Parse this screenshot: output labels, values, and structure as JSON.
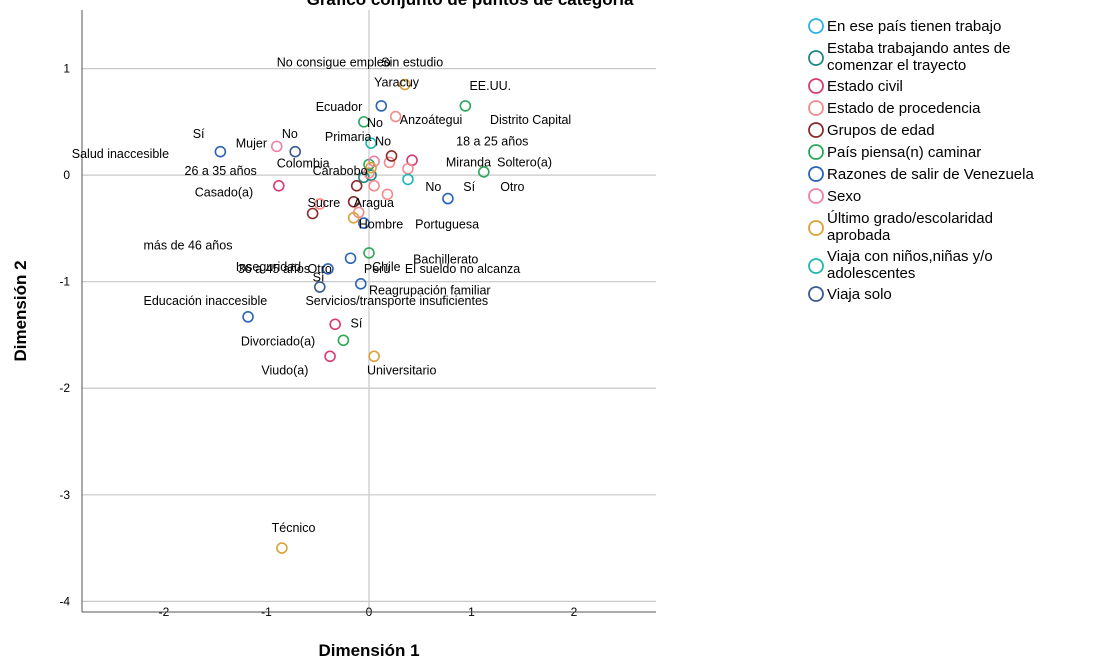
{
  "chart_data": {
    "type": "scatter",
    "title": "Gráfico conjunto de puntos de categoría",
    "xlabel": "Dimensión 1",
    "ylabel": "Dimensión 2",
    "xlim": [
      -2.8,
      2.8
    ],
    "ylim": [
      -4.1,
      1.55
    ],
    "xticks": [
      "-2",
      "-1",
      "0",
      "1",
      "2"
    ],
    "xtick_values": [
      -2,
      -1,
      0,
      1,
      2
    ],
    "yticks": [
      "1",
      "0",
      "-1",
      "-2",
      "-3",
      "-4"
    ],
    "ytick_values": [
      1,
      0,
      -1,
      -2,
      -3,
      -4
    ],
    "grid": "horizontal",
    "legend_position": "right",
    "series": [
      {
        "name": "En ese país tienen trabajo",
        "color": "#2cb3e6",
        "points": []
      },
      {
        "name": "Estaba trabajando antes de comenzar el trayecto",
        "color": "#1e8a7f",
        "points": [
          {
            "x": -0.05,
            "y": -0.02,
            "label": ""
          },
          {
            "x": 0.02,
            "y": 0.0,
            "label": ""
          }
        ]
      },
      {
        "name": "Estado civil",
        "color": "#d83c76",
        "points": [
          {
            "x": -0.88,
            "y": -0.1,
            "label": "Casado(a)"
          },
          {
            "x": 0.42,
            "y": 0.14,
            "label": "Soltero(a)"
          },
          {
            "x": -0.38,
            "y": -1.7,
            "label": "Viudo(a)"
          },
          {
            "x": -0.33,
            "y": -1.4,
            "label": "Divorciado(a)"
          }
        ]
      },
      {
        "name": "Estado de procedencia",
        "color": "#f28c8c",
        "points": [
          {
            "x": 0.26,
            "y": 0.55,
            "label": "Anzoátegui"
          },
          {
            "x": 0.38,
            "y": 0.06,
            "label": "Distrito Capital"
          },
          {
            "x": 0.18,
            "y": -0.18,
            "label": "Miranda"
          },
          {
            "x": -0.48,
            "y": -0.27,
            "label": "Carabobo"
          },
          {
            "x": 0.05,
            "y": -0.1,
            "label": "Aragua"
          },
          {
            "x": -0.1,
            "y": -0.35,
            "label": "Portuguesa"
          },
          {
            "x": 0.0,
            "y": 0.02,
            "label": "Sucre"
          },
          {
            "x": 0.2,
            "y": 0.12,
            "label": "Yaracuy"
          }
        ]
      },
      {
        "name": "Grupos de edad",
        "color": "#8c2a2a",
        "points": [
          {
            "x": 0.22,
            "y": 0.18,
            "label": "18 a 25 años"
          },
          {
            "x": -0.12,
            "y": -0.1,
            "label": "26 a 35 años"
          },
          {
            "x": -0.55,
            "y": -0.36,
            "label": "36 a 45 años"
          },
          {
            "x": -0.15,
            "y": -0.25,
            "label": "más de 46 años"
          }
        ]
      },
      {
        "name": "País piensa(n) caminar",
        "color": "#2ca85a",
        "points": [
          {
            "x": 0.94,
            "y": 0.65,
            "label": "EE.UU."
          },
          {
            "x": -0.05,
            "y": 0.5,
            "label": "Ecuador"
          },
          {
            "x": 1.12,
            "y": 0.03,
            "label": "Chile"
          },
          {
            "x": -0.25,
            "y": -1.55,
            "label": "Otro"
          },
          {
            "x": 0.0,
            "y": -0.73,
            "label": "Perú"
          },
          {
            "x": 0.0,
            "y": 0.1,
            "label": "Colombia"
          }
        ]
      },
      {
        "name": "Razones de salir de Venezuela",
        "color": "#2a63b8",
        "points": [
          {
            "x": 0.12,
            "y": 0.65,
            "label": "Sin estudio"
          },
          {
            "x": 0.77,
            "y": -0.22,
            "label": "El sueldo no alcanza"
          },
          {
            "x": -1.45,
            "y": 0.22,
            "label": "Salud inaccesible"
          },
          {
            "x": -1.18,
            "y": -1.33,
            "label": "Educación inaccesible"
          },
          {
            "x": -0.4,
            "y": -0.88,
            "label": "Inseguridad"
          },
          {
            "x": -0.18,
            "y": -0.78,
            "label": "Reagrupación familiar"
          },
          {
            "x": -0.08,
            "y": -1.02,
            "label": "Servicios/transporte insuficientes"
          },
          {
            "x": -0.05,
            "y": -0.45,
            "label": "No consigue empleo"
          }
        ]
      },
      {
        "name": "Sexo",
        "color": "#f07fa8",
        "points": [
          {
            "x": -0.9,
            "y": 0.27,
            "label": "Mujer"
          },
          {
            "x": 0.05,
            "y": 0.13,
            "label": "Hombre"
          }
        ]
      },
      {
        "name": "Último grado/escolaridad aprobada",
        "color": "#d9a23a",
        "points": [
          {
            "x": 0.35,
            "y": 0.85,
            "label": "Primaria"
          },
          {
            "x": 0.02,
            "y": 0.07,
            "label": "Bachillerato"
          },
          {
            "x": 0.05,
            "y": -1.7,
            "label": "Universitario"
          },
          {
            "x": -0.85,
            "y": -3.5,
            "label": "Técnico"
          },
          {
            "x": -0.15,
            "y": -0.4,
            "label": ""
          }
        ]
      },
      {
        "name": "Viaja con niños,niñas y/o adolescentes",
        "color": "#1fb6b0",
        "points": [
          {
            "x": 0.02,
            "y": 0.3,
            "label": "No"
          },
          {
            "x": 0.38,
            "y": -0.04,
            "label": "Sí"
          }
        ]
      },
      {
        "name": "Viaja solo",
        "color": "#3b5a8f",
        "points": [
          {
            "x": -0.72,
            "y": 0.22,
            "label": "No"
          },
          {
            "x": -0.48,
            "y": -1.05,
            "label": "Sí"
          }
        ]
      }
    ],
    "annotations": [
      {
        "text": "No consigue empleo",
        "x": -0.9,
        "y": 1.02
      },
      {
        "text": "Sin estudio",
        "x": 0.12,
        "y": 1.02
      },
      {
        "text": "Yaracuy",
        "x": 0.05,
        "y": 0.83
      },
      {
        "text": "EE.UU.",
        "x": 0.98,
        "y": 0.8
      },
      {
        "text": "Ecuador",
        "x": -0.52,
        "y": 0.6
      },
      {
        "text": "No",
        "x": -0.02,
        "y": 0.45
      },
      {
        "text": "Anzoátegui",
        "x": 0.3,
        "y": 0.48
      },
      {
        "text": "Distrito Capital",
        "x": 1.18,
        "y": 0.48
      },
      {
        "text": "Sí",
        "x": -1.72,
        "y": 0.35
      },
      {
        "text": "No",
        "x": -0.85,
        "y": 0.35
      },
      {
        "text": "Mujer",
        "x": -1.3,
        "y": 0.26
      },
      {
        "text": "Primaria",
        "x": -0.43,
        "y": 0.32
      },
      {
        "text": "No",
        "x": 0.06,
        "y": 0.28
      },
      {
        "text": "18 a 25 años",
        "x": 0.85,
        "y": 0.28
      },
      {
        "text": "Salud inaccesible",
        "x": -2.9,
        "y": 0.16
      },
      {
        "text": "Colombia",
        "x": -0.9,
        "y": 0.07
      },
      {
        "text": "26 a 35 años",
        "x": -1.8,
        "y": 0.0
      },
      {
        "text": "Carabobo",
        "x": -0.55,
        "y": 0.0
      },
      {
        "text": "Miranda",
        "x": 0.75,
        "y": 0.08
      },
      {
        "text": "Soltero(a)",
        "x": 1.25,
        "y": 0.08
      },
      {
        "text": "No",
        "x": 0.55,
        "y": -0.15
      },
      {
        "text": "Sí",
        "x": 0.92,
        "y": -0.15
      },
      {
        "text": "Otro",
        "x": 1.28,
        "y": -0.15
      },
      {
        "text": "Casado(a)",
        "x": -1.7,
        "y": -0.2
      },
      {
        "text": "Sucre",
        "x": -0.6,
        "y": -0.3
      },
      {
        "text": "Aragua",
        "x": -0.15,
        "y": -0.3
      },
      {
        "text": "Hombre",
        "x": -0.1,
        "y": -0.5
      },
      {
        "text": "Portuguesa",
        "x": 0.45,
        "y": -0.5
      },
      {
        "text": "más de 46 años",
        "x": -2.2,
        "y": -0.7
      },
      {
        "text": "36 a 45 años",
        "x": -1.28,
        "y": -0.92
      },
      {
        "text": "Otro",
        "x": -0.6,
        "y": -0.92
      },
      {
        "text": "Perú",
        "x": -0.05,
        "y": -0.92
      },
      {
        "text": "El sueldo no alcanza",
        "x": 0.35,
        "y": -0.92
      },
      {
        "text": "Inseguridad",
        "x": -1.3,
        "y": -0.9
      },
      {
        "text": "Bachillerato",
        "x": 0.43,
        "y": -0.83
      },
      {
        "text": "Chile",
        "x": 0.03,
        "y": -0.9
      },
      {
        "text": "Sí",
        "x": -0.55,
        "y": -1.0
      },
      {
        "text": "Reagrupación familiar",
        "x": 0.0,
        "y": -1.12
      },
      {
        "text": "Educación inaccesible",
        "x": -2.2,
        "y": -1.22
      },
      {
        "text": "Servicios/transporte insuficientes",
        "x": -0.62,
        "y": -1.22
      },
      {
        "text": "Sí",
        "x": -0.18,
        "y": -1.43
      },
      {
        "text": "Divorciado(a)",
        "x": -1.25,
        "y": -1.6
      },
      {
        "text": "Viudo(a)",
        "x": -1.05,
        "y": -1.87
      },
      {
        "text": "Universitario",
        "x": -0.02,
        "y": -1.87
      },
      {
        "text": "Técnico",
        "x": -0.95,
        "y": -3.35
      }
    ]
  }
}
